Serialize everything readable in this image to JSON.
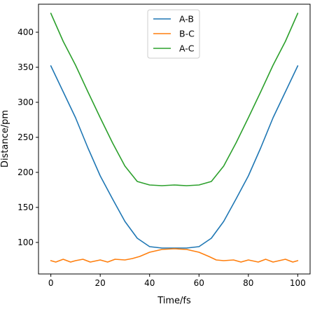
{
  "chart_data": {
    "type": "line",
    "xlabel": "Time/fs",
    "ylabel": "Distance/pm",
    "xlim": [
      -5,
      105
    ],
    "ylim": [
      55,
      440
    ],
    "xticks": [
      0,
      20,
      40,
      60,
      80,
      100
    ],
    "yticks": [
      100,
      150,
      200,
      250,
      300,
      350,
      400
    ],
    "grid": false,
    "legend_position": "top-center",
    "series": [
      {
        "name": "A-B",
        "color": "#1f77b4",
        "x": [
          0,
          5,
          10,
          15,
          20,
          25,
          30,
          35,
          40,
          45,
          50,
          55,
          60,
          65,
          70,
          75,
          80,
          85,
          90,
          95,
          100
        ],
        "y": [
          352,
          315,
          278,
          235,
          195,
          162,
          130,
          106,
          94,
          92,
          92,
          92,
          94,
          106,
          130,
          162,
          195,
          235,
          278,
          315,
          352
        ]
      },
      {
        "name": "B-C",
        "color": "#ff7f0e",
        "x": [
          0,
          2,
          5,
          8,
          10,
          13,
          16,
          20,
          23,
          26,
          30,
          33,
          36,
          40,
          45,
          50,
          55,
          60,
          64,
          67,
          70,
          74,
          77,
          80,
          84,
          87,
          90,
          95,
          98,
          100
        ],
        "y": [
          74,
          72,
          76,
          72,
          74,
          76,
          72,
          75,
          72,
          76,
          75,
          77,
          80,
          86,
          90,
          91,
          90,
          86,
          80,
          75,
          74,
          75,
          72,
          75,
          72,
          76,
          72,
          76,
          72,
          74
        ]
      },
      {
        "name": "A-C",
        "color": "#2ca02c",
        "x": [
          0,
          5,
          10,
          15,
          20,
          25,
          30,
          35,
          40,
          45,
          50,
          55,
          60,
          65,
          70,
          75,
          80,
          85,
          90,
          95,
          100
        ],
        "y": [
          427,
          387,
          353,
          315,
          278,
          242,
          209,
          187,
          182,
          181,
          182,
          181,
          182,
          187,
          209,
          242,
          278,
          315,
          353,
          387,
          427
        ]
      }
    ]
  }
}
